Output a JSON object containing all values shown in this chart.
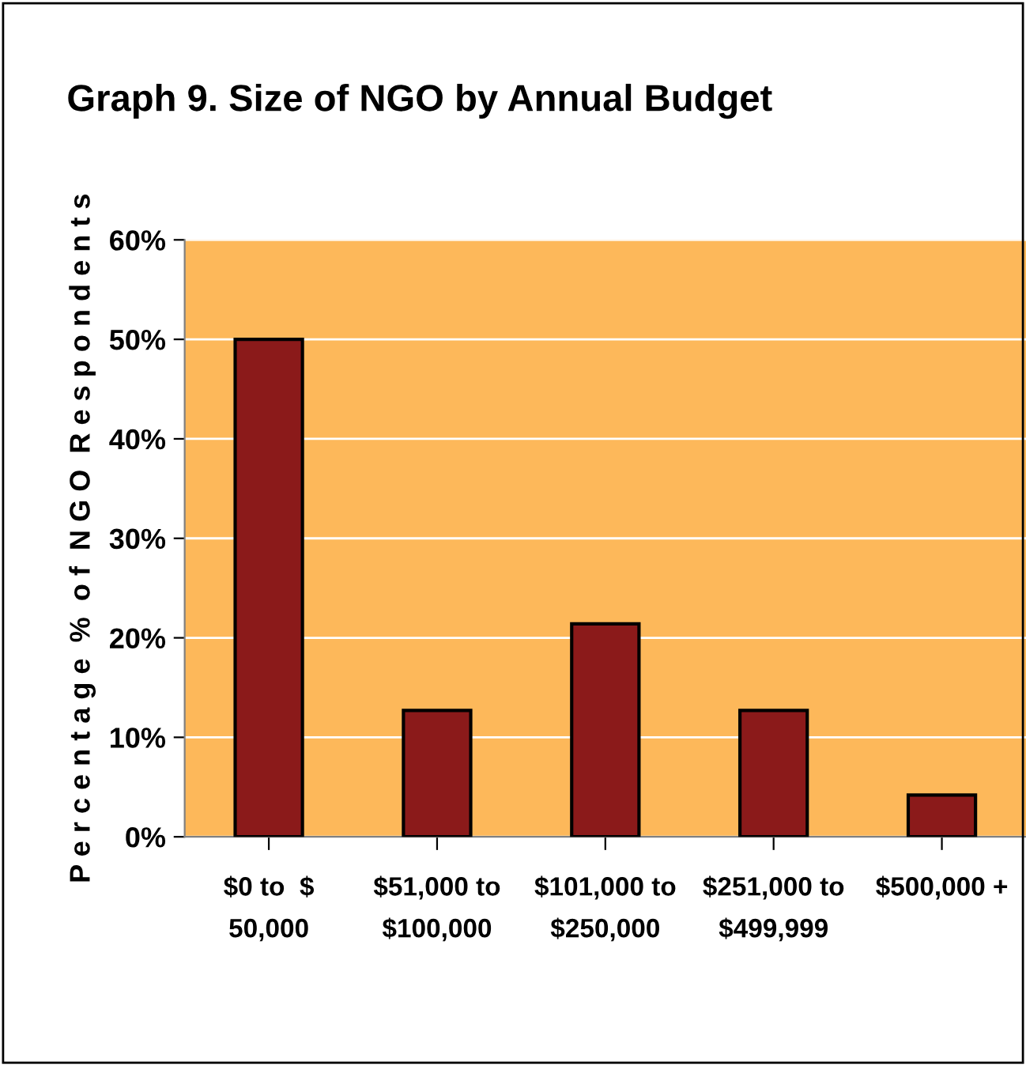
{
  "chart_data": {
    "type": "bar",
    "title": "Graph 9. Size of NGO by Annual Budget",
    "ylabel": "P e r c e n t a g e  %  o f  N G O  R e s p o n d e n t s",
    "categories": [
      "$0 to  $\n50,000",
      "$51,000 to\n$100,000",
      "$101,000 to\n$250,000",
      "$251,000 to\n$499,999",
      "$500,000 +"
    ],
    "values": [
      50,
      12.7,
      21.4,
      12.7,
      4.2
    ],
    "color": "#8b1a1a",
    "ylim": [
      0,
      60
    ],
    "yticks": [
      {
        "value": 0,
        "label": "0%"
      },
      {
        "value": 10,
        "label": "10%"
      },
      {
        "value": 20,
        "label": "20%"
      },
      {
        "value": 30,
        "label": "30%"
      },
      {
        "value": 40,
        "label": "40%"
      },
      {
        "value": 50,
        "label": "50%"
      },
      {
        "value": 60,
        "label": "60%"
      }
    ],
    "grid": "y"
  }
}
